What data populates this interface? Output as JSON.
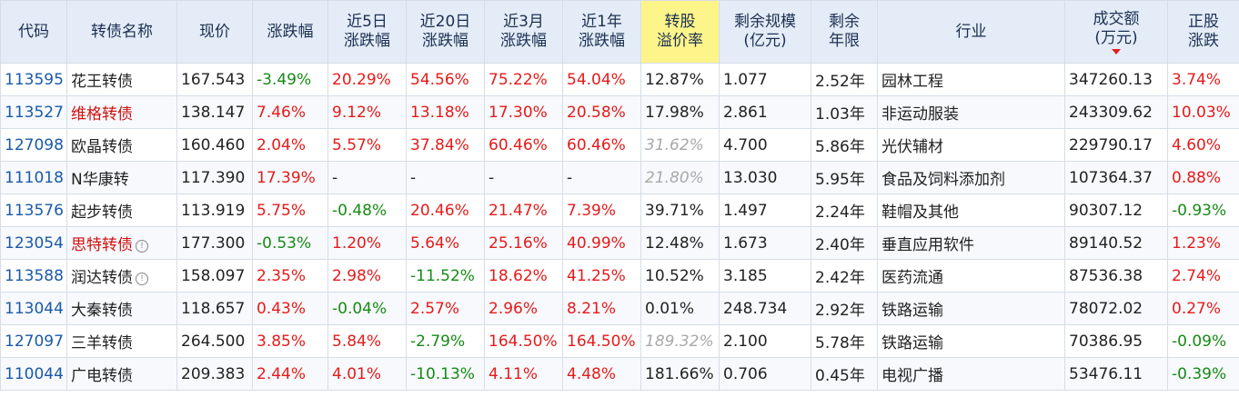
{
  "headers": [
    {
      "label": "代码",
      "highlight": false
    },
    {
      "label": "转债名称",
      "highlight": false
    },
    {
      "label": "现价",
      "highlight": false
    },
    {
      "label": "涨跌幅",
      "highlight": false
    },
    {
      "label": "近5日\n涨跌幅",
      "highlight": false
    },
    {
      "label": "近20日\n涨跌幅",
      "highlight": false
    },
    {
      "label": "近3月\n涨跌幅",
      "highlight": false
    },
    {
      "label": "近1年\n涨跌幅",
      "highlight": false
    },
    {
      "label": "转股\n溢价率",
      "highlight": true
    },
    {
      "label": "剩余规模\n(亿元)",
      "highlight": false
    },
    {
      "label": "剩余\n年限",
      "highlight": false
    },
    {
      "label": "行业",
      "highlight": false
    },
    {
      "label": "成交额\n(万元)",
      "highlight": false,
      "sorted": "desc"
    },
    {
      "label": "正股\n涨跌",
      "highlight": false
    }
  ],
  "rows": [
    {
      "code": "113595",
      "name": "花王转债",
      "name_color": "normal",
      "info": false,
      "price": "167.543",
      "chg": "-3.49%",
      "chg5": "20.29%",
      "chg20": "54.56%",
      "chg3m": "75.22%",
      "chg1y": "54.04%",
      "premium": "12.87%",
      "premium_muted": false,
      "scale": "1.077",
      "years": "2.52年",
      "industry": "园林工程",
      "amount": "347260.13",
      "stock_chg": "3.74%"
    },
    {
      "code": "113527",
      "name": "维格转债",
      "name_color": "red",
      "info": false,
      "price": "138.147",
      "chg": "7.46%",
      "chg5": "9.12%",
      "chg20": "13.18%",
      "chg3m": "17.30%",
      "chg1y": "20.58%",
      "premium": "17.98%",
      "premium_muted": false,
      "scale": "2.861",
      "years": "1.03年",
      "industry": "非运动服装",
      "amount": "243309.62",
      "stock_chg": "10.03%"
    },
    {
      "code": "127098",
      "name": "欧晶转债",
      "name_color": "normal",
      "info": false,
      "price": "160.460",
      "chg": "2.04%",
      "chg5": "5.57%",
      "chg20": "37.84%",
      "chg3m": "60.46%",
      "chg1y": "60.46%",
      "premium": "31.62%",
      "premium_muted": true,
      "scale": "4.700",
      "years": "5.86年",
      "industry": "光伏辅材",
      "amount": "229790.17",
      "stock_chg": "4.60%"
    },
    {
      "code": "111018",
      "name": "N华康转",
      "name_color": "normal",
      "info": false,
      "price": "117.390",
      "chg": "17.39%",
      "chg5": "-",
      "chg20": "-",
      "chg3m": "-",
      "chg1y": "-",
      "premium": "21.80%",
      "premium_muted": true,
      "scale": "13.030",
      "years": "5.95年",
      "industry": "食品及饲料添加剂",
      "amount": "107364.37",
      "stock_chg": "0.88%"
    },
    {
      "code": "113576",
      "name": "起步转债",
      "name_color": "normal",
      "info": false,
      "price": "113.919",
      "chg": "5.75%",
      "chg5": "-0.48%",
      "chg20": "20.46%",
      "chg3m": "21.47%",
      "chg1y": "7.39%",
      "premium": "39.71%",
      "premium_muted": false,
      "scale": "1.497",
      "years": "2.24年",
      "industry": "鞋帽及其他",
      "amount": "90307.12",
      "stock_chg": "-0.93%"
    },
    {
      "code": "123054",
      "name": "思特转债",
      "name_color": "red",
      "info": true,
      "price": "177.300",
      "chg": "-0.53%",
      "chg5": "1.20%",
      "chg20": "5.64%",
      "chg3m": "25.16%",
      "chg1y": "40.99%",
      "premium": "12.48%",
      "premium_muted": false,
      "scale": "1.673",
      "years": "2.40年",
      "industry": "垂直应用软件",
      "amount": "89140.52",
      "stock_chg": "1.23%"
    },
    {
      "code": "113588",
      "name": "润达转债",
      "name_color": "normal",
      "info": true,
      "price": "158.097",
      "chg": "2.35%",
      "chg5": "2.98%",
      "chg20": "-11.52%",
      "chg3m": "18.62%",
      "chg1y": "41.25%",
      "premium": "10.52%",
      "premium_muted": false,
      "scale": "3.185",
      "years": "2.42年",
      "industry": "医药流通",
      "amount": "87536.38",
      "stock_chg": "2.74%"
    },
    {
      "code": "113044",
      "name": "大秦转债",
      "name_color": "normal",
      "info": false,
      "price": "118.657",
      "chg": "0.43%",
      "chg5": "-0.04%",
      "chg20": "2.57%",
      "chg3m": "2.96%",
      "chg1y": "8.21%",
      "premium": "0.01%",
      "premium_muted": false,
      "scale": "248.734",
      "years": "2.92年",
      "industry": "铁路运输",
      "amount": "78072.02",
      "stock_chg": "0.27%"
    },
    {
      "code": "127097",
      "name": "三羊转债",
      "name_color": "normal",
      "info": false,
      "price": "264.500",
      "chg": "3.85%",
      "chg5": "5.84%",
      "chg20": "-2.79%",
      "chg3m": "164.50%",
      "chg1y": "164.50%",
      "premium": "189.32%",
      "premium_muted": true,
      "scale": "2.100",
      "years": "5.78年",
      "industry": "铁路运输",
      "amount": "70386.95",
      "stock_chg": "-0.09%"
    },
    {
      "code": "110044",
      "name": "广电转债",
      "name_color": "normal",
      "info": false,
      "price": "209.383",
      "chg": "2.44%",
      "chg5": "4.01%",
      "chg20": "-10.13%",
      "chg3m": "4.11%",
      "chg1y": "4.48%",
      "premium": "181.66%",
      "premium_muted": false,
      "scale": "0.706",
      "years": "0.45年",
      "industry": "电视广播",
      "amount": "53476.11",
      "stock_chg": "-0.39%"
    }
  ],
  "colors": {
    "up": "#e61a1a",
    "down": "#168a16",
    "code": "#1a5aa8",
    "header_bg": "#e4ecf7",
    "highlight_bg": "#fdf58a"
  }
}
